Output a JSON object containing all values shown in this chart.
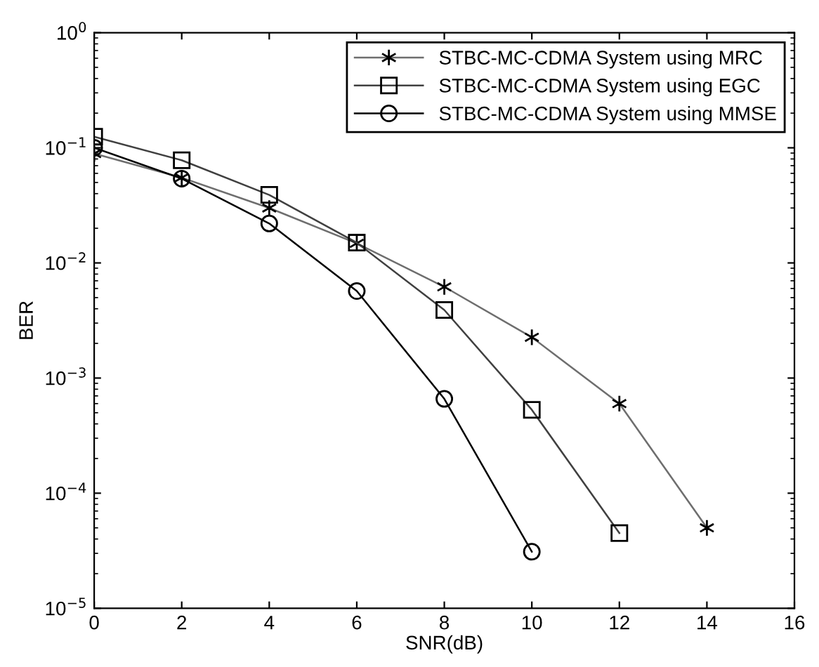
{
  "chart_data": {
    "type": "line",
    "xlabel": "SNR(dB)",
    "ylabel": "BER",
    "log": "y",
    "grid": false,
    "legend": "top right",
    "line_style": "solid",
    "xlim": [
      0,
      16
    ],
    "xticks": [
      0,
      2,
      4,
      6,
      8,
      10,
      12,
      14,
      16
    ],
    "ylim": [
      1e-05,
      1
    ],
    "yticks": [
      {
        "value": 1e-05,
        "label": "10$^{−5}$"
      },
      {
        "value": 0.0001,
        "label": "10$^{−4}$"
      },
      {
        "value": 0.001,
        "label": "10$^{−3}$"
      },
      {
        "value": 0.01,
        "label": "10$^{−2}$"
      },
      {
        "value": 0.1,
        "label": "10$^{−1}$"
      },
      {
        "value": 1,
        "label": "10$^{0}$"
      }
    ],
    "series": [
      {
        "name": "STBC-MC-CDMA System using MRC",
        "color": "#6e6e6e",
        "marker": "cross",
        "x": [
          0,
          2,
          4,
          6,
          8,
          10,
          12,
          14
        ],
        "values": [
          0.089,
          0.055,
          0.03,
          0.0148,
          0.0062,
          0.00226,
          0.0006,
          5e-05
        ]
      },
      {
        "name": "STBC-MC-CDMA System using EGC",
        "color": "#404040",
        "marker": "square",
        "x": [
          0,
          2,
          4,
          6,
          8,
          10,
          12
        ],
        "values": [
          0.125,
          0.078,
          0.039,
          0.015,
          0.0039,
          0.00053,
          4.5e-05
        ]
      },
      {
        "name": "STBC-MC-CDMA System using MMSE",
        "color": "#000000",
        "marker": "circle",
        "x": [
          0,
          2,
          4,
          6,
          8,
          10
        ],
        "values": [
          0.1,
          0.054,
          0.022,
          0.0057,
          0.00066,
          3.1e-05
        ]
      }
    ]
  }
}
